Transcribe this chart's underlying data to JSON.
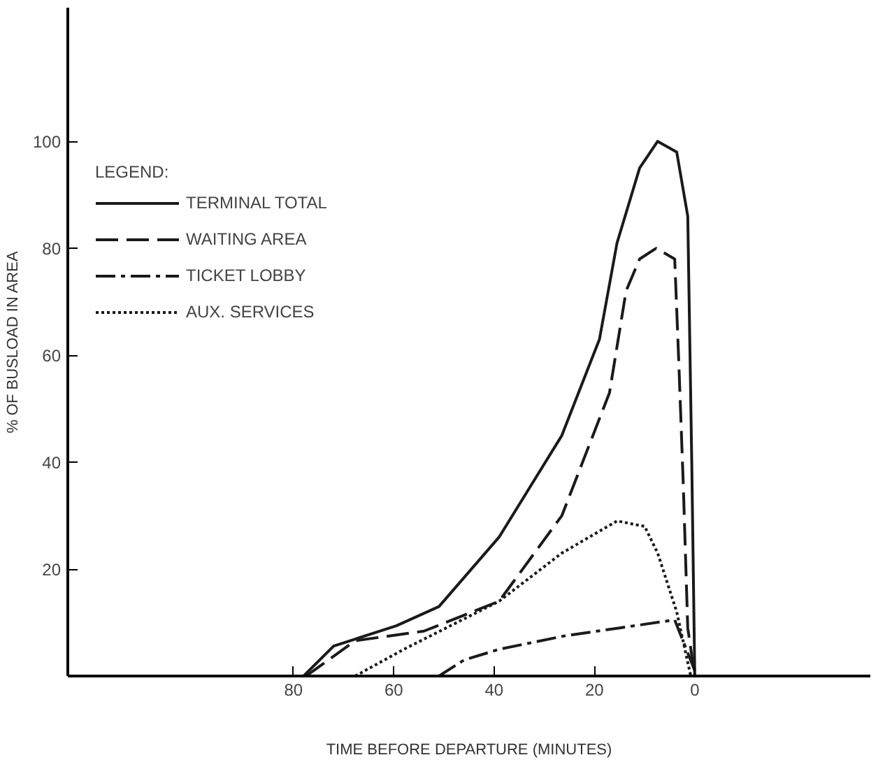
{
  "chart_data": {
    "type": "line",
    "xlabel": "TIME BEFORE DEPARTURE (MINUTES)",
    "ylabel": "% OF BUSLOAD IN AREA",
    "legend_title": "LEGEND:",
    "xlim": [
      125,
      -35
    ],
    "ylim": [
      0,
      125
    ],
    "xticks": [
      80,
      60,
      40,
      20,
      0
    ],
    "yticks": [
      20,
      40,
      60,
      80,
      100
    ],
    "grid": false,
    "legend": "top left",
    "marker": "none",
    "series": [
      {
        "name": "TERMINAL TOTAL",
        "color": "#1a1a1a",
        "line_style": "solid",
        "x": [
          78,
          72,
          59.5,
          51,
          39,
          26.5,
          19,
          15.5,
          11,
          7.4,
          3.6,
          1.4,
          0.6,
          0
        ],
        "values": [
          0,
          5.6,
          9.4,
          13,
          26,
          45,
          63,
          81,
          95,
          100,
          98,
          86,
          40,
          0
        ]
      },
      {
        "name": "WAITING AREA",
        "color": "#1a1a1a",
        "line_style": "dashed",
        "x": [
          77.5,
          67.7,
          54,
          39,
          26.5,
          17,
          13.7,
          11,
          7.7,
          4,
          3.2,
          2.3,
          1.4,
          0
        ],
        "values": [
          0,
          6.6,
          8.4,
          14,
          30,
          53,
          72,
          78,
          80,
          78,
          59,
          36,
          9,
          0
        ]
      },
      {
        "name": "TICKET LOBBY",
        "color": "#1a1a1a",
        "line_style": "dashdot",
        "x": [
          51,
          46,
          39,
          26,
          15,
          4,
          0
        ],
        "values": [
          0,
          3,
          5,
          7.5,
          9,
          10.5,
          1
        ]
      },
      {
        "name": "AUX. SERVICES",
        "color": "#1a1a1a",
        "line_style": "dotted",
        "x": [
          67.7,
          58,
          39,
          26.5,
          15.5,
          10,
          7.4,
          3.6,
          0.8
        ],
        "values": [
          0,
          5,
          14,
          23,
          29,
          28,
          23,
          12,
          0
        ]
      }
    ]
  }
}
